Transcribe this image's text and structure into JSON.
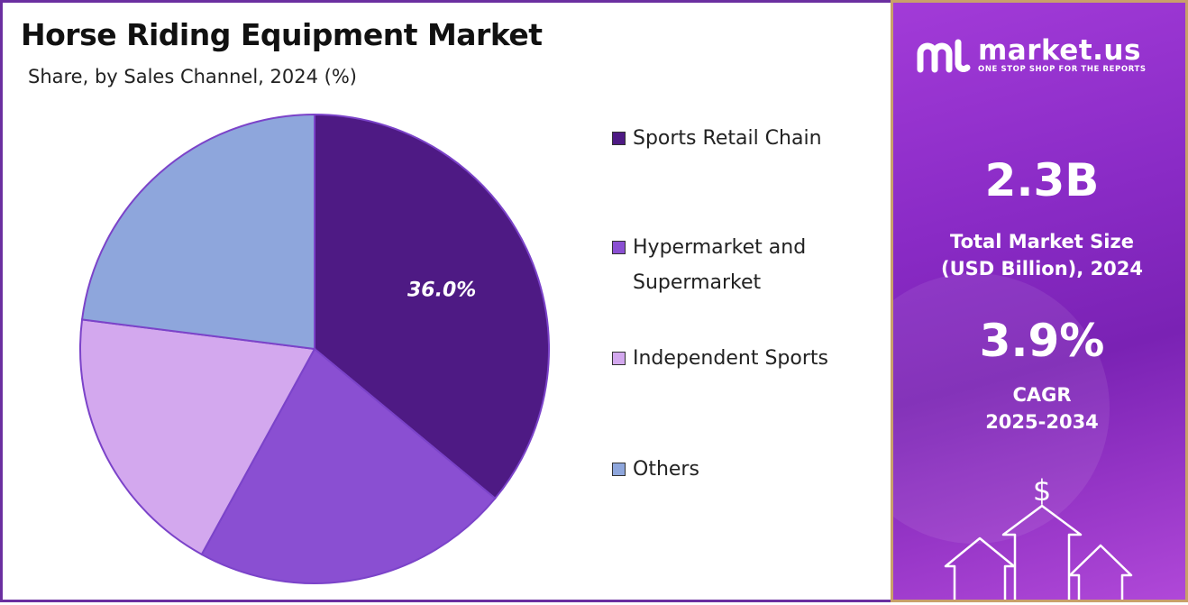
{
  "title": "Horse Riding Equipment Market",
  "subtitle": "Share, by Sales Channel, 2024 (%)",
  "chart_data": {
    "type": "pie",
    "title": "Horse Riding Equipment Market",
    "subtitle": "Share, by Sales Channel, 2024 (%)",
    "categories": [
      "Sports Retail Chain",
      "Hypermarket and Supermarket",
      "Independent Sports",
      "Others"
    ],
    "values": [
      36.0,
      22.0,
      19.0,
      23.0
    ],
    "colors": [
      "#4e1a84",
      "#8a4fd2",
      "#d3a8ee",
      "#8ea6dc"
    ],
    "data_labels": [
      "36.0%",
      "",
      "",
      ""
    ],
    "legend_position": "right"
  },
  "legend": [
    {
      "lines": [
        "Sports Retail Chain"
      ],
      "color": "#4e1a84"
    },
    {
      "lines": [
        "Hypermarket and",
        "Supermarket"
      ],
      "color": "#8a4fd2"
    },
    {
      "lines": [
        "Independent Sports"
      ],
      "color": "#d3a8ee"
    },
    {
      "lines": [
        "Others"
      ],
      "color": "#8ea6dc"
    }
  ],
  "side": {
    "brand_name": "market.us",
    "tagline": "ONE STOP SHOP FOR THE REPORTS",
    "market_size_value": "2.3B",
    "market_size_label_line1": "Total Market Size",
    "market_size_label_line2": "(USD Billion), 2024",
    "cagr_value": "3.9%",
    "cagr_label": "CAGR",
    "cagr_period": "2025-2034",
    "icons": [
      "dollar-icon",
      "growth-arrows-icon"
    ]
  }
}
